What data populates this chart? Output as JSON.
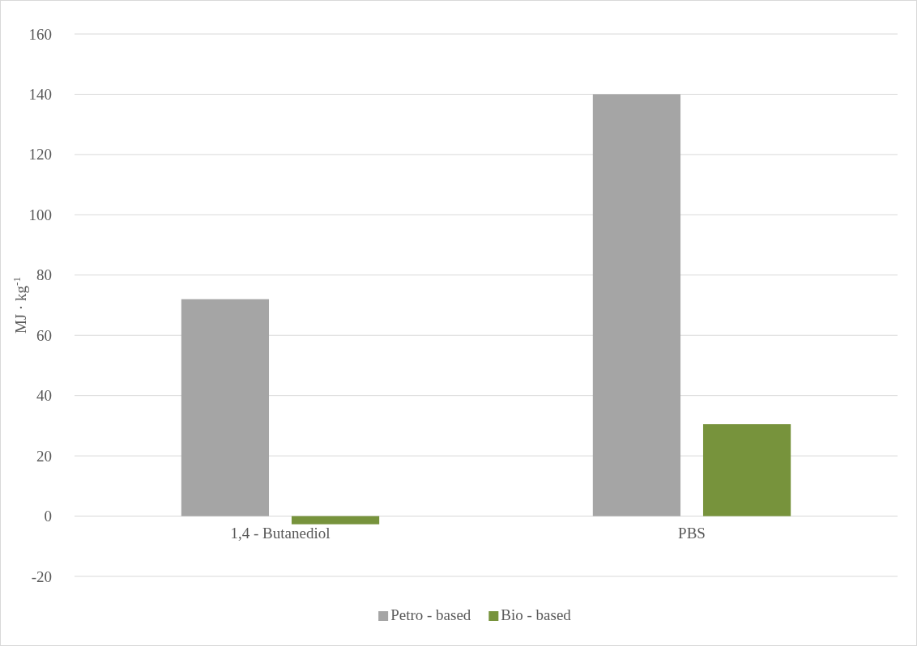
{
  "chart_data": {
    "type": "bar",
    "ylabel": "MJ · kg$^{-1}$",
    "categories": [
      "1,4 - Butanediol",
      "PBS"
    ],
    "series": [
      {
        "name": "Petro - based",
        "color": "#a5a5a5",
        "values": [
          72,
          140
        ]
      },
      {
        "name": "Bio - based",
        "color": "#77933c",
        "values": [
          -2.7,
          30.5
        ]
      }
    ],
    "ylim": [
      -20,
      160
    ],
    "yticks": [
      -20,
      0,
      20,
      40,
      60,
      80,
      100,
      120,
      140,
      160
    ],
    "grid": "y",
    "legend": "bottom"
  }
}
